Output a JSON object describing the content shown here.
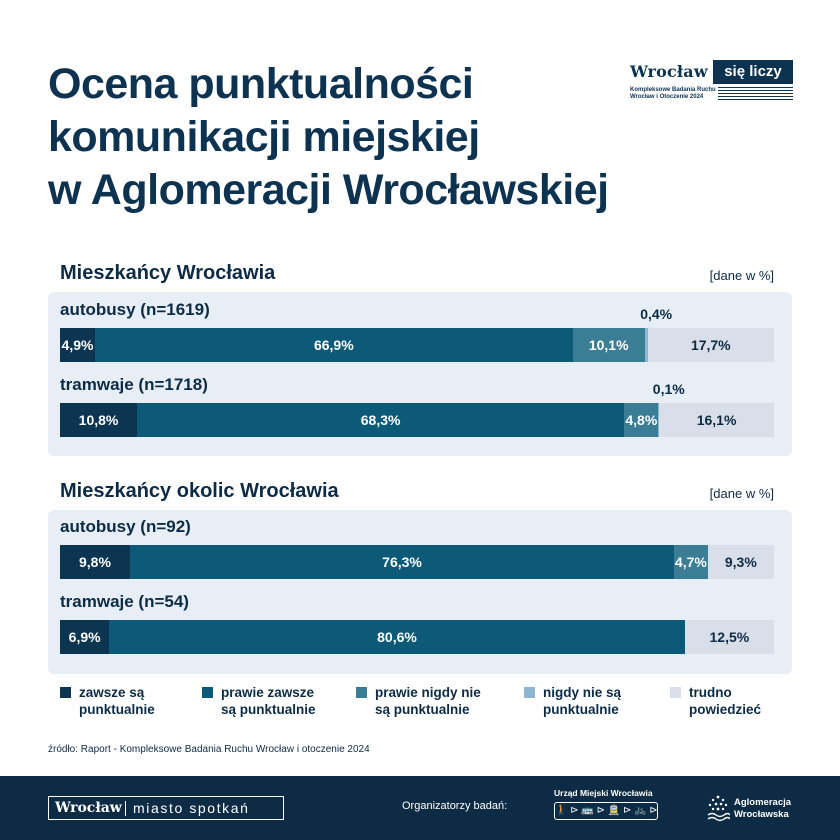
{
  "title": {
    "line1": "Ocena punktualności",
    "line2": "komunikacji miejskiej",
    "line3": "w Aglomeracji Wrocławskiej"
  },
  "logo": {
    "word": "Wrocław",
    "box": "się liczy",
    "sub1": "Kompleksowe Badania Ruchu",
    "sub2": "Wrocław i Otoczenie 2024"
  },
  "colors": {
    "zawsze": "#0b3550",
    "prawie_zawsze": "#0c5a78",
    "prawie_nigdy": "#3a7d94",
    "nigdy": "#8fb6d0",
    "trudno": "#d9dfe8",
    "panel": "#e8eef6",
    "footer": "#0d2b45"
  },
  "legend": [
    {
      "key": "zawsze",
      "line1": "zawsze są",
      "line2": "punktualnie"
    },
    {
      "key": "prawie_zawsze",
      "line1": "prawie zawsze",
      "line2": "są punktualnie"
    },
    {
      "key": "prawie_nigdy",
      "line1": "prawie nigdy nie",
      "line2": "są punktualnie"
    },
    {
      "key": "nigdy",
      "line1": "nigdy nie są",
      "line2": "punktualnie"
    },
    {
      "key": "trudno",
      "line1": "trudno",
      "line2": "powiedzieć"
    }
  ],
  "chart_data": [
    {
      "type": "bar",
      "orientation": "horizontal-stacked-100",
      "title": "Mieszkańcy Wrocławia",
      "unit_note": "[dane w %]",
      "categories": [
        "zawsze są punktualnie",
        "prawie zawsze są punktualnie",
        "prawie nigdy nie są punktualnie",
        "nigdy nie są punktualnie",
        "trudno powiedzieć"
      ],
      "rows": [
        {
          "label": "autobusy (n=1619)",
          "values": [
            4.9,
            66.9,
            10.1,
            0.4,
            17.7
          ],
          "labels": [
            "4,9%",
            "66,9%",
            "10,1%",
            "0,4%",
            "17,7%"
          ]
        },
        {
          "label": "tramwaje (n=1718)",
          "values": [
            10.8,
            68.3,
            4.8,
            0.1,
            16.1
          ],
          "labels": [
            "10,8%",
            "68,3%",
            "4,8%",
            "0,1%",
            "16,1%"
          ]
        }
      ]
    },
    {
      "type": "bar",
      "orientation": "horizontal-stacked-100",
      "title": "Mieszkańcy okolic Wrocławia",
      "unit_note": "[dane w %]",
      "categories": [
        "zawsze są punktualnie",
        "prawie zawsze są punktualnie",
        "prawie nigdy nie są punktualnie",
        "nigdy nie są punktualnie",
        "trudno powiedzieć"
      ],
      "rows": [
        {
          "label": "autobusy (n=92)",
          "values": [
            9.8,
            76.3,
            4.7,
            0,
            9.3
          ],
          "labels": [
            "9,8%",
            "76,3%",
            "4,7%",
            "",
            "9,3%"
          ]
        },
        {
          "label": "tramwaje (n=54)",
          "values": [
            6.9,
            80.6,
            0,
            0,
            12.5
          ],
          "labels": [
            "6,9%",
            "80,6%",
            "",
            "",
            "12,5%"
          ]
        }
      ]
    }
  ],
  "source": "źródło: Raport - Kompleksowe Badania Ruchu Wrocław i otoczenie 2024",
  "footer": {
    "brand_a": "Wrocław",
    "brand_b": "miasto spotkań",
    "organizers": "Organizatorzy badań:",
    "um_title": "Urząd Miejski Wrocławia",
    "ag_line1": "Aglomeracja",
    "ag_line2": "Wrocławska"
  }
}
